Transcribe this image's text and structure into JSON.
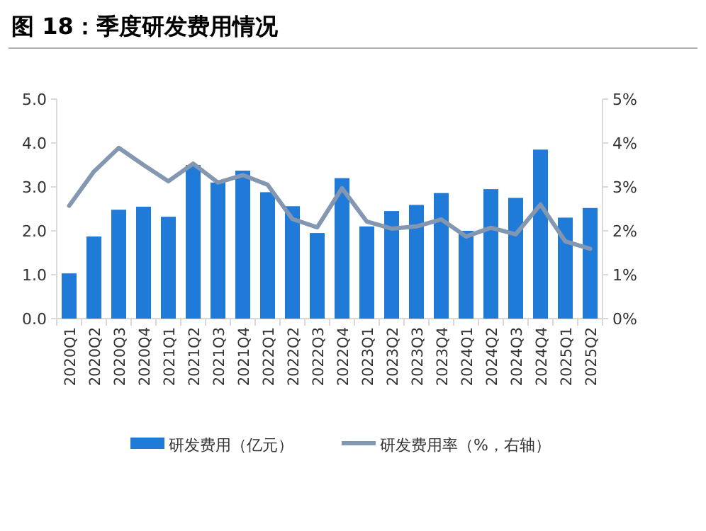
{
  "chart_data": {
    "type": "bar",
    "title": "图 18：季度研发费用情况",
    "categories": [
      "2020Q1",
      "2020Q2",
      "2020Q3",
      "2020Q4",
      "2021Q1",
      "2021Q2",
      "2021Q3",
      "2021Q4",
      "2022Q1",
      "2022Q2",
      "2022Q3",
      "2022Q4",
      "2023Q1",
      "2023Q2",
      "2023Q3",
      "2023Q4",
      "2024Q1",
      "2024Q2",
      "2024Q3",
      "2024Q4",
      "2025Q1",
      "2025Q2"
    ],
    "series": [
      {
        "name": "研发费用（亿元）",
        "color": "#1f7ad8",
        "values": [
          1.03,
          1.87,
          2.48,
          2.55,
          2.32,
          3.5,
          3.1,
          3.37,
          2.88,
          2.56,
          1.95,
          3.2,
          2.1,
          2.45,
          2.59,
          2.86,
          2.0,
          2.95,
          2.75,
          3.85,
          2.3,
          2.52
        ]
      },
      {
        "name": "研发费用率（%，右轴）",
        "type": "line",
        "axis": "y2",
        "color": "#8497b0",
        "values": [
          2.57,
          3.35,
          3.89,
          3.5,
          3.13,
          3.53,
          3.1,
          3.27,
          3.05,
          2.27,
          2.08,
          2.97,
          2.21,
          2.05,
          2.1,
          2.26,
          1.87,
          2.07,
          1.92,
          2.6,
          1.76,
          1.59
        ]
      }
    ],
    "ylim": [
      0,
      5
    ],
    "yticks": [
      {
        "value": 0,
        "label": "0.0"
      },
      {
        "value": 1,
        "label": "1.0"
      },
      {
        "value": 2,
        "label": "2.0"
      },
      {
        "value": 3,
        "label": "3.0"
      },
      {
        "value": 4,
        "label": "4.0"
      },
      {
        "value": 5,
        "label": "5.0"
      }
    ],
    "y2lim": [
      0,
      5
    ],
    "y2ticks": [
      {
        "value": 0,
        "label": "0%"
      },
      {
        "value": 1,
        "label": "1%"
      },
      {
        "value": 2,
        "label": "2%"
      },
      {
        "value": 3,
        "label": "3%"
      },
      {
        "value": 4,
        "label": "4%"
      },
      {
        "value": 5,
        "label": "5%"
      }
    ],
    "legend": "bottom",
    "grid": false,
    "marker": "none",
    "line_style": "solid"
  }
}
